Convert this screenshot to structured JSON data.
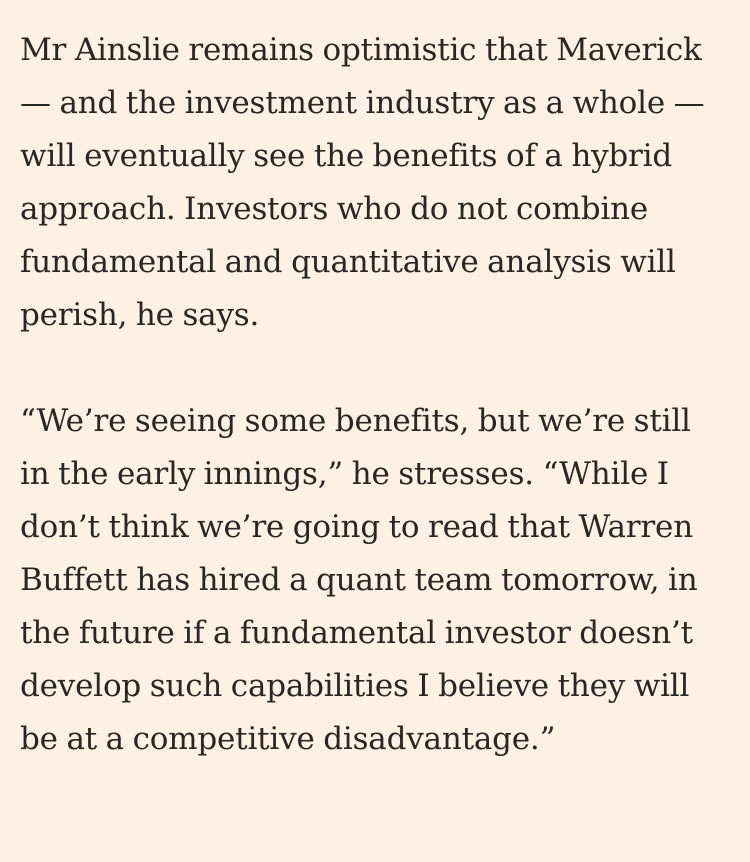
{
  "article": {
    "paragraphs": [
      {
        "lines": [
          "Mr Ainslie remains optimistic that Maverick",
          "— and the investment industry as a whole —",
          "will eventually see the benefits of a hybrid",
          "approach. Investors who do not combine",
          "fundamental and quantitative analysis will",
          "perish, he says."
        ]
      },
      {
        "lines": [
          "“We’re seeing some benefits, but we’re still",
          "in the early innings,” he stresses. “While I",
          "don’t think we’re going to read that Warren",
          "Buffett has hired a quant team tomorrow, in",
          "the future if a fundamental investor doesn’t",
          "develop such capabilities I believe they will",
          "be at a competitive disadvantage.”"
        ]
      }
    ]
  }
}
